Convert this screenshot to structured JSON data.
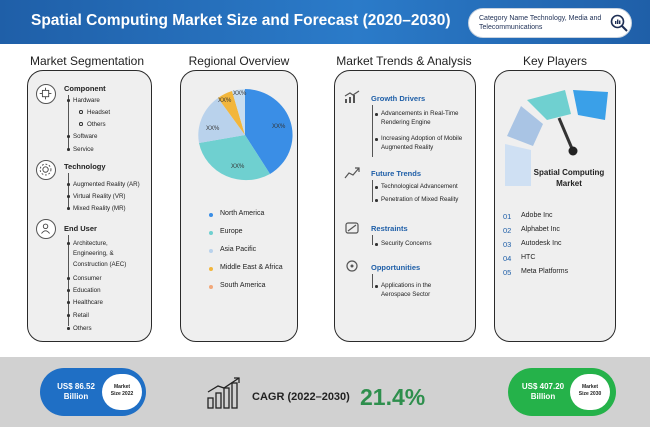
{
  "header": {
    "title": "Spatial Computing Market Size and Forecast (2020–2030)",
    "category_text": "Category Name Technology, Media and Telecommunications"
  },
  "sections": {
    "segmentation_title": "Market Segmentation",
    "regional_title": "Regional Overview",
    "trends_title": "Market Trends & Analysis",
    "players_title": "Key Players"
  },
  "segmentation": {
    "component": {
      "title": "Component",
      "hardware": "Hardware",
      "headset": "Headset",
      "others": "Others",
      "software": "Software",
      "service": "Service"
    },
    "technology": {
      "title": "Technology",
      "items": [
        "Augmented Reality (AR)",
        "Virtual Reality (VR)",
        "Mixed Reality (MR)"
      ]
    },
    "end_user": {
      "title": "End User",
      "aec_1": "Architecture,",
      "aec_2": "Engineering, &",
      "aec_3": "Construction (AEC)",
      "items": [
        "Consumer",
        "Education",
        "Healthcare",
        "Retail",
        "Others"
      ]
    }
  },
  "regional": {
    "slice_label": "XX%",
    "legend": [
      "North America",
      "Europe",
      "Asia Pacific",
      "Middle East & Africa",
      "South America"
    ],
    "colors": [
      "#3a8ee6",
      "#6fd0d0",
      "#b9d2ec",
      "#f2b63c",
      "#c8ddf0"
    ]
  },
  "trends": {
    "growth": {
      "title": "Growth Drivers",
      "items": [
        "Advancements in Real-Time Rendering Engine",
        "Increasing Adoption of Mobile Augmented Reality"
      ]
    },
    "future": {
      "title": "Future Trends",
      "items": [
        "Technological Advancement",
        "Penetration of Mixed Reality"
      ]
    },
    "restraints": {
      "title": "Restraints",
      "items": [
        "Security Concerns"
      ]
    },
    "opportunities": {
      "title": "Opportunities",
      "items": [
        "Applications in the Aerospace Sector"
      ]
    }
  },
  "players": {
    "gauge_label_1": "Spatial Computing",
    "gauge_label_2": "Market",
    "list": [
      {
        "num": "01",
        "name": "Adobe Inc"
      },
      {
        "num": "02",
        "name": "Alphabet Inc"
      },
      {
        "num": "03",
        "name": "Autodesk Inc"
      },
      {
        "num": "04",
        "name": "HTC"
      },
      {
        "num": "05",
        "name": "Meta Platforms"
      }
    ]
  },
  "footer": {
    "left_value_1": "US$ 86.52",
    "left_value_2": "Billion",
    "left_badge_1": "Market",
    "left_badge_2": "Size 2022",
    "cagr_label": "CAGR (2022–2030)",
    "cagr_value": "21.4%",
    "right_value_1": "US$ 407.20",
    "right_value_2": "Billion",
    "right_badge_1": "Market",
    "right_badge_2": "Size 2030",
    "left_color": "#1f6fc5",
    "right_color": "#25b24a"
  }
}
